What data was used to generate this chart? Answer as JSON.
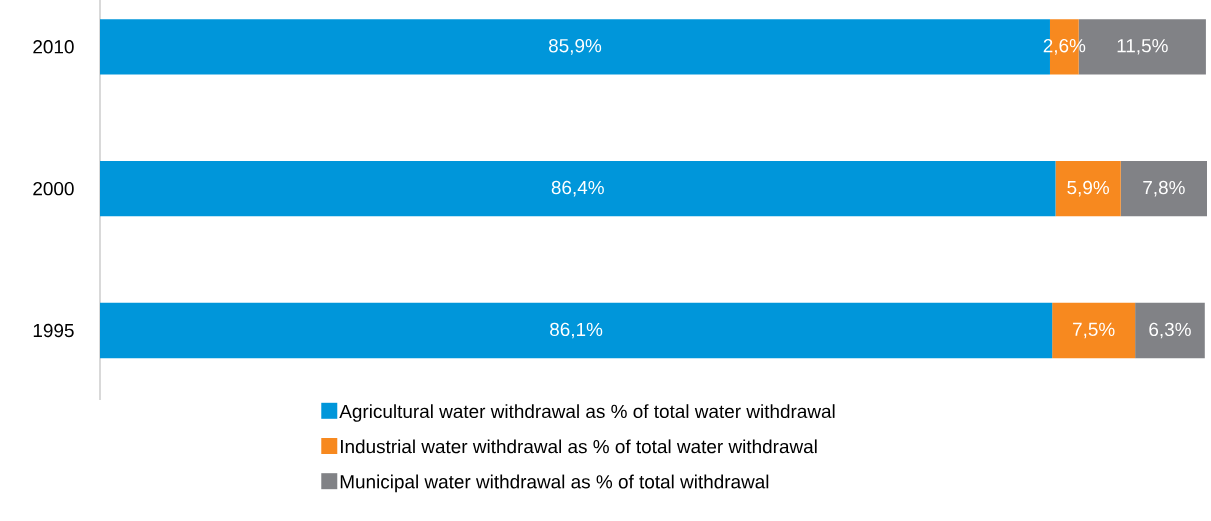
{
  "chart_data": {
    "type": "bar",
    "orientation": "horizontal",
    "stacked": true,
    "legend": "bottom",
    "tick_labels": "y",
    "categories": [
      "2010",
      "2000",
      "1995"
    ],
    "series": [
      {
        "name": "Agricultural water withdrawal as % of total water withdrawal",
        "color": "#0096da",
        "values": [
          85.9,
          86.4,
          86.1
        ],
        "value_labels": [
          "85,9%",
          "86,4%",
          "86,1%"
        ]
      },
      {
        "name": "Industrial water withdrawal as % of total water withdrawal",
        "color": "#f7891f",
        "values": [
          2.6,
          5.9,
          7.5
        ],
        "value_labels": [
          "2,6%",
          "5,9%",
          "7,5%"
        ]
      },
      {
        "name": "Municipal water withdrawal as % of total withdrawal",
        "color": "#818286",
        "values": [
          11.5,
          7.8,
          6.3
        ],
        "value_labels": [
          "11,5%",
          "7,8%",
          "6,3%"
        ]
      }
    ]
  }
}
